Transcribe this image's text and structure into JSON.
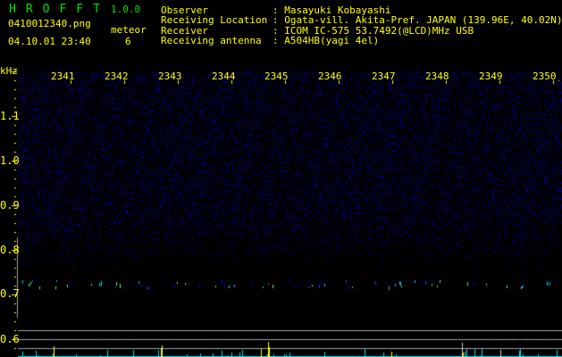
{
  "app": {
    "title": "HROFFT",
    "version": "1.0.0"
  },
  "file": {
    "name": "0410012340.png",
    "timestamp": "04.10.01 23:40"
  },
  "meteor": {
    "label": "meteor",
    "count": "6"
  },
  "info": [
    {
      "label": "Observer",
      "value": ": Masayuki Kobayashi"
    },
    {
      "label": "Receiving Location",
      "value": ": Ogata-vill. Akita-Pref. JAPAN (139.96E, 40.02N)"
    },
    {
      "label": "Receiver",
      "value": ": ICOM IC-575 53.7492(@LCD)MHz USB"
    },
    {
      "label": "Receiving antenna",
      "value": ": A504HB(yagi 4el)"
    }
  ],
  "axis": {
    "y_unit": "kHz",
    "y_ticks": [
      "1.1",
      "1.0",
      "0.9",
      "0.8",
      "0.7",
      "0.6"
    ],
    "x_ticks": [
      "2341",
      "2342",
      "2343",
      "2344",
      "2345",
      "2346",
      "2347",
      "2348",
      "2349",
      "2350"
    ]
  },
  "colors": {
    "text": "#ffff00",
    "title": "#00e000",
    "noise": "#0000c0",
    "bars_low": "#00e0e0",
    "bars_high": "#ffff00"
  }
}
